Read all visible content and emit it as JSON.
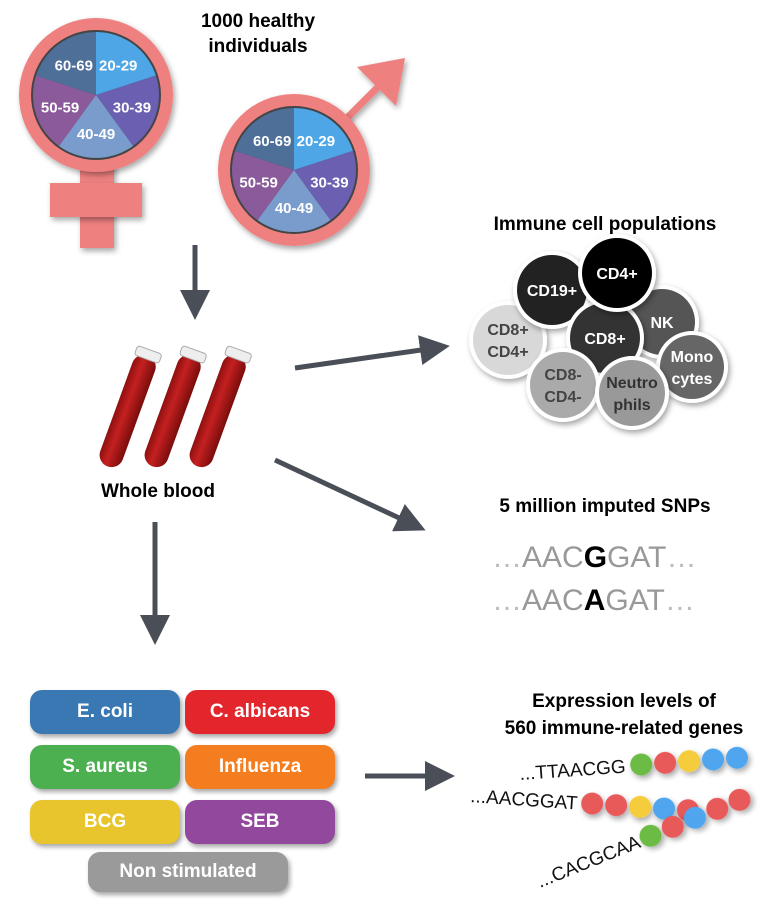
{
  "title": [
    "1000 healthy",
    "individuals"
  ],
  "age_groups": [
    "20-29",
    "30-39",
    "40-49",
    "50-59",
    "60-69"
  ],
  "age_colors": [
    "#4fa6e6",
    "#6a5fb0",
    "#7a9ccc",
    "#8a5a9a",
    "#4d6f98"
  ],
  "symbol_color": "#ee8080",
  "whole_blood": "Whole blood",
  "immune": {
    "title": "Immune cell populations",
    "cells": [
      {
        "label": [
          "CD19+"
        ],
        "color": "#222222",
        "text": "#ffffff"
      },
      {
        "label": [
          "CD4+"
        ],
        "color": "#000000",
        "text": "#ffffff"
      },
      {
        "label": [
          "NK"
        ],
        "color": "#555555",
        "text": "#ffffff"
      },
      {
        "label": [
          "CD8+"
        ],
        "color": "#333333",
        "text": "#ffffff"
      },
      {
        "label": [
          "CD8+",
          "CD4+"
        ],
        "color": "#d8d8d8",
        "text": "#444444"
      },
      {
        "label": [
          "CD8-",
          "CD4-"
        ],
        "color": "#aaaaaa",
        "text": "#444444"
      },
      {
        "label": [
          "Neutro",
          "phils"
        ],
        "color": "#999999",
        "text": "#333333"
      },
      {
        "label": [
          "Mono",
          "cytes"
        ],
        "color": "#666666",
        "text": "#ffffff"
      }
    ]
  },
  "snps": {
    "title": "5 million imputed SNPs",
    "seq1": {
      "pre": "AAC",
      "snp": "G",
      "post": "GAT"
    },
    "seq2": {
      "pre": "AAC",
      "snp": "A",
      "post": "GAT"
    }
  },
  "stimuli": [
    {
      "label": "E. coli",
      "color": "#3a78b4"
    },
    {
      "label": "C. albicans",
      "color": "#e2262b"
    },
    {
      "label": "S. aureus",
      "color": "#4caf50"
    },
    {
      "label": "Influenza",
      "color": "#f47d20"
    },
    {
      "label": "BCG",
      "color": "#e9c52d"
    },
    {
      "label": "SEB",
      "color": "#92489c"
    },
    {
      "label": "Non stimulated",
      "color": "#9a9a9a"
    }
  ],
  "expression": {
    "title": [
      "Expression levels of",
      "560 immune-related genes"
    ],
    "rows": [
      {
        "seq": "...TTAACGG",
        "beads": [
          "#6cbb45",
          "#e85a5a",
          "#f5cc3a",
          "#4fa6ef",
          "#4fa6ef"
        ]
      },
      {
        "seq": "...AACGGAT",
        "beads": [
          "#e85a5a",
          "#e85a5a",
          "#f5cc3a",
          "#4fa6ef",
          "#e85a5a"
        ]
      },
      {
        "seq": "...CACGCAA",
        "beads": [
          "#6cbb45",
          "#e85a5a",
          "#4fa6ef",
          "#e85a5a",
          "#e85a5a"
        ]
      }
    ]
  }
}
